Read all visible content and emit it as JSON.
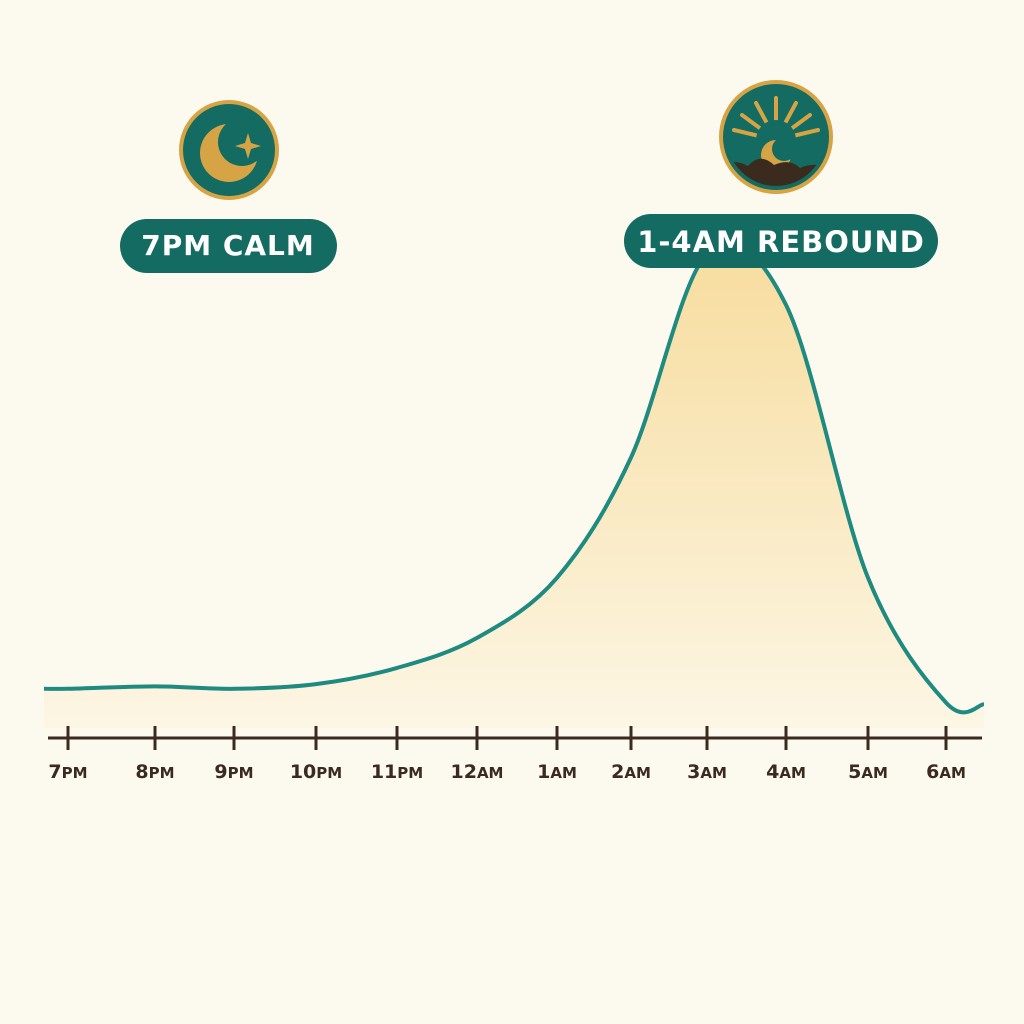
{
  "chart_data": {
    "type": "area",
    "x": [
      "7PM",
      "8PM",
      "9PM",
      "10PM",
      "11PM",
      "12AM",
      "1AM",
      "2AM",
      "3AM",
      "4AM",
      "5AM",
      "6AM"
    ],
    "values": [
      1.0,
      1.05,
      1.0,
      1.1,
      1.45,
      2.1,
      3.4,
      6.0,
      10.4,
      9.3,
      3.4,
      0.7
    ],
    "ylim": [
      0,
      12
    ],
    "grid": false,
    "yaxis_visible": false,
    "colors": {
      "line": "#1f8a80",
      "fill_top": "#f7dc9d",
      "fill_bottom": "#fcf6e4",
      "axis": "#3b2a20",
      "badge": "#136b61",
      "accent": "#d6a444"
    },
    "annotations": [
      {
        "label": "7PM CALM",
        "icon": "moon-star-icon",
        "at": "7PM"
      },
      {
        "label": "1-4AM REBOUND",
        "icon": "sunrise-moon-icon",
        "at": "3AM"
      }
    ]
  }
}
